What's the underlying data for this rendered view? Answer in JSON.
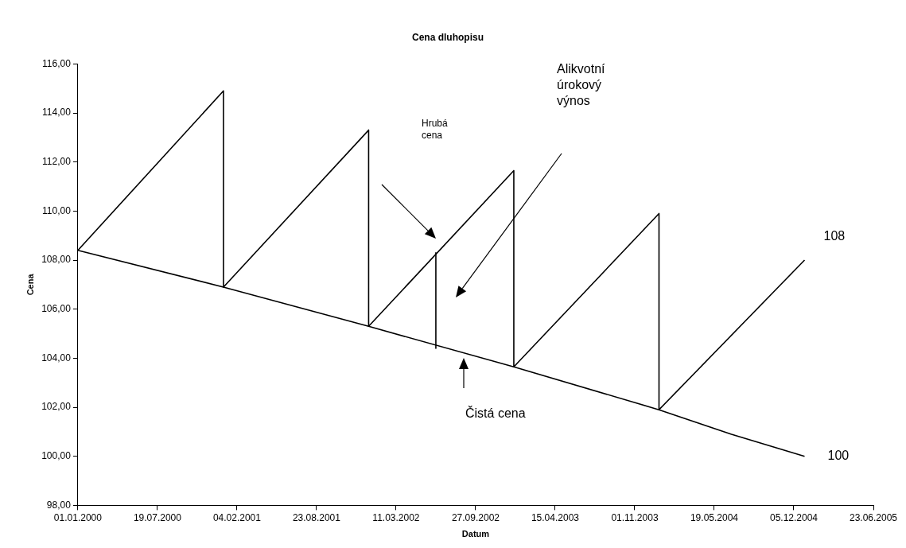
{
  "chart_data": {
    "type": "line",
    "title": "Cena dluhopisu",
    "xlabel": "Datum",
    "ylabel": "Cena",
    "series": [
      {
        "color": "#000000",
        "x": [
          "2000-01-01",
          "2001-01-01",
          "2001-01-01",
          "2002-01-01",
          "2002-01-01",
          "2003-01-01",
          "2003-01-01",
          "2004-01-01",
          "2004-01-01",
          "2005-01-01"
        ],
        "values": [
          108.4,
          114.9,
          106.9,
          113.3,
          105.3,
          111.65,
          103.65,
          109.9,
          101.9,
          108
        ]
      },
      {
        "color": "#000000",
        "x": [
          "2000-01-01",
          "2001-01-01",
          "2002-01-01",
          "2003-01-01",
          "2004-01-01",
          "2004-07-01",
          "2005-01-01"
        ],
        "values": [
          108.4,
          106.9,
          105.3,
          103.65,
          101.9,
          100.9,
          100
        ]
      },
      {
        "color": "#000000",
        "x": [
          "2002-06-19",
          "2002-06-19"
        ],
        "values": [
          108.3,
          104.4
        ]
      }
    ],
    "xlim": [
      "2000-01-01",
      "2005-06-23"
    ],
    "xticks": [
      {
        "value": "2000-01-01",
        "label": "01.01.2000"
      },
      {
        "value": "2000-07-19",
        "label": "19.07.2000"
      },
      {
        "value": "2001-02-04",
        "label": "04.02.2001"
      },
      {
        "value": "2001-08-23",
        "label": "23.08.2001"
      },
      {
        "value": "2002-03-11",
        "label": "11.03.2002"
      },
      {
        "value": "2002-09-27",
        "label": "27.09.2002"
      },
      {
        "value": "2003-04-15",
        "label": "15.04.2003"
      },
      {
        "value": "2003-11-01",
        "label": "01.11.2003"
      },
      {
        "value": "2004-05-19",
        "label": "19.05.2004"
      },
      {
        "value": "2004-12-05",
        "label": "05.12.2004"
      },
      {
        "value": "2005-06-23",
        "label": "23.06.2005"
      }
    ],
    "ylim": [
      98,
      116
    ],
    "yticks": [
      {
        "value": 98,
        "label": "98,00"
      },
      {
        "value": 100,
        "label": "100,00"
      },
      {
        "value": 102,
        "label": "102,00"
      },
      {
        "value": 104,
        "label": "104,00"
      },
      {
        "value": 106,
        "label": "106,00"
      },
      {
        "value": 108,
        "label": "108,00"
      },
      {
        "value": 110,
        "label": "110,00"
      },
      {
        "value": 112,
        "label": "112,00"
      },
      {
        "value": 114,
        "label": "114,00"
      },
      {
        "value": 116,
        "label": "116,00"
      }
    ],
    "grid": false,
    "legend": false,
    "marker": "none",
    "line_style": "solid",
    "annotations": [
      "Hrubá cena",
      "Alikvotní úrokový výnos",
      "Čistá cena",
      {
        "text": "108",
        "x": "2005-01-01",
        "y": 108
      },
      {
        "text": "100",
        "x": "2005-01-01",
        "y": 100
      }
    ]
  }
}
